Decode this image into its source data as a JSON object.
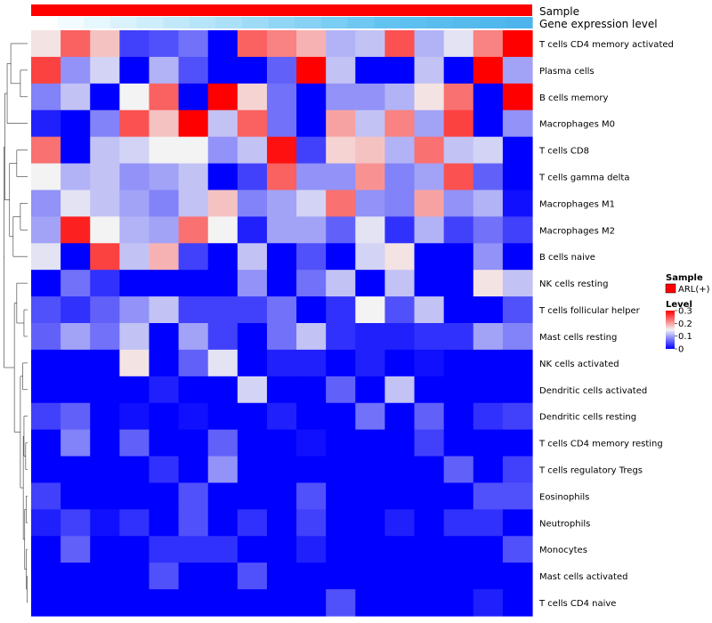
{
  "chart_data": {
    "type": "heatmap",
    "annotation_rows": [
      {
        "name": "Sample",
        "color": "#ff0000"
      },
      {
        "name": "Gene expression level",
        "colors": [
          "#ffffff",
          "#f2fbfe",
          "#e6f7fd",
          "#daf2fc",
          "#ceeefb",
          "#c2e9fa",
          "#b6e4f9",
          "#aae0f8",
          "#9edbf7",
          "#92d6f5",
          "#86d1f4",
          "#7acdf3",
          "#6ec8f2",
          "#62c3f0",
          "#5dc0f0",
          "#59bdee",
          "#55bbed",
          "#51b8ed",
          "#4db5eb"
        ]
      }
    ],
    "rows": [
      "T cells CD4 memory activated",
      "Plasma cells",
      "B cells memory",
      "Macrophages M0",
      "T cells CD8",
      "T cells gamma delta",
      "Macrophages M1",
      "Macrophages M2",
      "B cells naive",
      "NK cells resting",
      "T cells follicular helper",
      "Mast cells resting",
      "NK cells activated",
      "Dendritic cells activated",
      "Dendritic cells resting",
      "T cells CD4 memory resting",
      "T cells regulatory  Tregs",
      "Eosinophils",
      "Neutrophils",
      "Monocytes",
      "Mast cells activated",
      "T cells CD4 naive"
    ],
    "values": [
      [
        0.16,
        0.24,
        0.18,
        0.04,
        0.05,
        0.07,
        0.0,
        0.24,
        0.22,
        0.19,
        0.11,
        0.12,
        0.25,
        0.11,
        0.14,
        0.22,
        0.3
      ],
      [
        0.26,
        0.09,
        0.13,
        0.0,
        0.11,
        0.05,
        0.0,
        0.0,
        0.06,
        0.3,
        0.12,
        0.0,
        0.0,
        0.12,
        0.0,
        0.3,
        0.1
      ],
      [
        0.08,
        0.12,
        0.0,
        0.15,
        0.24,
        0.0,
        0.3,
        0.17,
        0.07,
        0.0,
        0.09,
        0.09,
        0.11,
        0.16,
        0.23,
        0.0,
        0.3
      ],
      [
        0.02,
        0.0,
        0.08,
        0.25,
        0.18,
        0.3,
        0.12,
        0.24,
        0.07,
        0.0,
        0.2,
        0.12,
        0.22,
        0.1,
        0.26,
        0.0,
        0.09
      ],
      [
        0.23,
        0.0,
        0.12,
        0.13,
        0.15,
        0.15,
        0.09,
        0.12,
        0.29,
        0.04,
        0.17,
        0.18,
        0.11,
        0.23,
        0.12,
        0.13,
        0.0
      ],
      [
        0.15,
        0.11,
        0.12,
        0.09,
        0.1,
        0.12,
        0.0,
        0.04,
        0.24,
        0.09,
        0.09,
        0.21,
        0.08,
        0.1,
        0.25,
        0.06,
        0.0
      ],
      [
        0.09,
        0.14,
        0.12,
        0.1,
        0.08,
        0.12,
        0.18,
        0.08,
        0.1,
        0.13,
        0.23,
        0.09,
        0.08,
        0.2,
        0.09,
        0.11,
        0.01
      ],
      [
        0.1,
        0.28,
        0.15,
        0.11,
        0.1,
        0.23,
        0.15,
        0.02,
        0.1,
        0.1,
        0.06,
        0.14,
        0.03,
        0.11,
        0.04,
        0.07,
        0.04
      ],
      [
        0.14,
        0.0,
        0.26,
        0.12,
        0.19,
        0.04,
        0.0,
        0.12,
        0.0,
        0.05,
        0.0,
        0.13,
        0.16,
        0.0,
        0.0,
        0.09,
        0.0
      ],
      [
        0.0,
        0.07,
        0.03,
        0.0,
        0.0,
        0.0,
        0.0,
        0.09,
        0.0,
        0.07,
        0.12,
        0.0,
        0.12,
        0.0,
        0.0,
        0.16,
        0.12
      ],
      [
        0.05,
        0.03,
        0.06,
        0.09,
        0.12,
        0.04,
        0.04,
        0.04,
        0.07,
        0.0,
        0.03,
        0.15,
        0.05,
        0.12,
        0.0,
        0.0,
        0.05
      ],
      [
        0.06,
        0.1,
        0.07,
        0.12,
        0.0,
        0.1,
        0.04,
        0.0,
        0.07,
        0.12,
        0.03,
        0.02,
        0.02,
        0.03,
        0.03,
        0.1,
        0.08
      ],
      [
        0.0,
        0.0,
        0.0,
        0.16,
        0.0,
        0.06,
        0.14,
        0.0,
        0.02,
        0.02,
        0.0,
        0.02,
        0.0,
        0.01,
        0.0,
        0.0,
        0.0
      ],
      [
        0.0,
        0.0,
        0.0,
        0.0,
        0.02,
        0.0,
        0.0,
        0.13,
        0.0,
        0.0,
        0.06,
        0.0,
        0.12,
        0.0,
        0.0,
        0.0,
        0.0
      ],
      [
        0.04,
        0.06,
        0.0,
        0.01,
        0.0,
        0.01,
        0.0,
        0.0,
        0.02,
        0.0,
        0.0,
        0.07,
        0.0,
        0.06,
        0.0,
        0.03,
        0.04
      ],
      [
        0.0,
        0.08,
        0.0,
        0.06,
        0.0,
        0.0,
        0.06,
        0.0,
        0.0,
        0.01,
        0.0,
        0.0,
        0.0,
        0.04,
        0.0,
        0.0,
        0.0
      ],
      [
        0.0,
        0.0,
        0.0,
        0.0,
        0.03,
        0.0,
        0.09,
        0.0,
        0.0,
        0.0,
        0.0,
        0.0,
        0.0,
        0.0,
        0.06,
        0.0,
        0.04
      ],
      [
        0.04,
        0.0,
        0.0,
        0.0,
        0.0,
        0.05,
        0.0,
        0.0,
        0.0,
        0.05,
        0.0,
        0.0,
        0.0,
        0.0,
        0.0,
        0.05,
        0.05
      ],
      [
        0.02,
        0.04,
        0.01,
        0.03,
        0.0,
        0.05,
        0.0,
        0.03,
        0.0,
        0.04,
        0.0,
        0.0,
        0.02,
        0.0,
        0.03,
        0.03,
        0.0
      ],
      [
        0.0,
        0.06,
        0.0,
        0.0,
        0.03,
        0.03,
        0.03,
        0.0,
        0.0,
        0.02,
        0.0,
        0.0,
        0.0,
        0.0,
        0.0,
        0.0,
        0.05
      ],
      [
        0.0,
        0.0,
        0.0,
        0.0,
        0.05,
        0.0,
        0.0,
        0.05,
        0.0,
        0.0,
        0.0,
        0.0,
        0.0,
        0.0,
        0.0,
        0.0,
        0.0
      ],
      [
        0.0,
        0.0,
        0.0,
        0.0,
        0.0,
        0.0,
        0.0,
        0.0,
        0.0,
        0.0,
        0.05,
        0.0,
        0.0,
        0.0,
        0.0,
        0.02,
        0.0
      ]
    ],
    "legend": {
      "sample_title": "Sample",
      "sample_item": "ARL(+)",
      "sample_color": "#ff0000",
      "level_title": "Level",
      "ticks": [
        "0.3",
        "0.2",
        "0.1",
        "0"
      ],
      "range": [
        0,
        0.3
      ]
    },
    "color_scale": {
      "low": "#0000ff",
      "mid": "#f3f3f3",
      "high": "#ff0000",
      "mid_value": 0.15
    },
    "dendrogram": "left"
  }
}
